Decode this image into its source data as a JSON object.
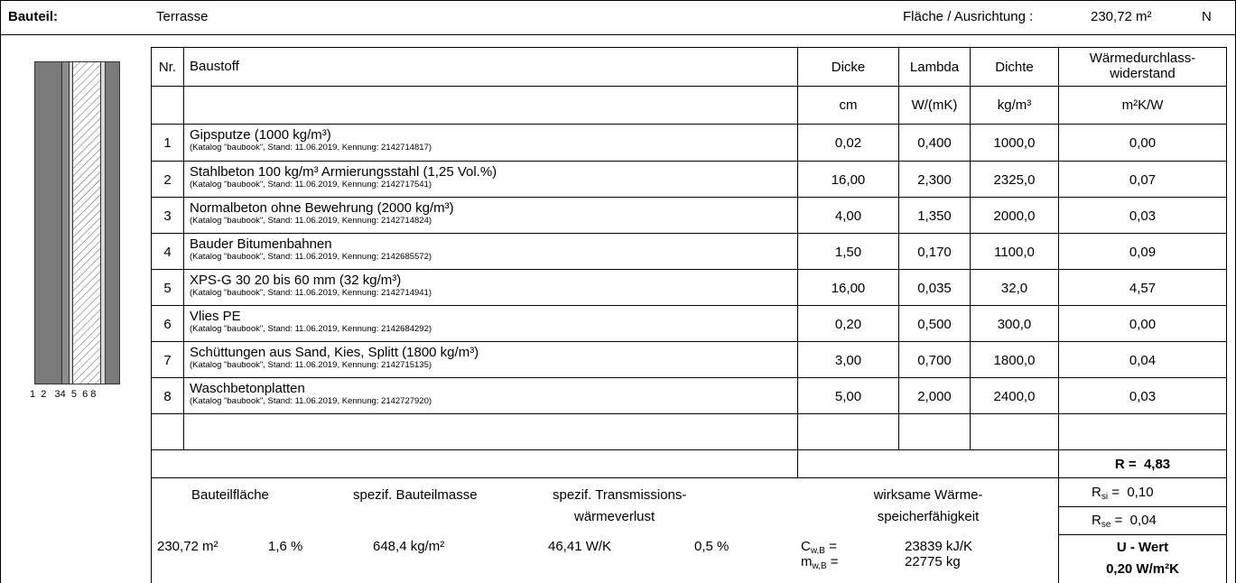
{
  "header": {
    "label": "Bauteil:",
    "name": "Terrasse",
    "area_label": "Fläche / Ausrichtung :",
    "area_value": "230,72 m²",
    "orientation": "N"
  },
  "columns": {
    "nr": "Nr.",
    "material": "Baustoff",
    "thickness": "Dicke",
    "lambda": "Lambda",
    "density": "Dichte",
    "resistance": "Wärmedurchlass-\nwiderstand",
    "resistance_line1": "Wärmedurchlass-",
    "resistance_line2": "widerstand"
  },
  "units": {
    "thickness": "cm",
    "lambda": "W/(mK)",
    "density": "kg/m³",
    "resistance": "m²K/W"
  },
  "layers": [
    {
      "nr": "1",
      "name": "Gipsputze (1000 kg/m³)",
      "catalog": "(Katalog \"baubook\", Stand: 11.06.2019, Kennung: 2142714817)",
      "thickness": "0,02",
      "lambda": "0,400",
      "density": "1000,0",
      "resistance": "0,00"
    },
    {
      "nr": "2",
      "name": "Stahlbeton 100 kg/m³ Armierungsstahl (1,25 Vol.%)",
      "catalog": "(Katalog \"baubook\", Stand: 11.06.2019, Kennung: 2142717541)",
      "thickness": "16,00",
      "lambda": "2,300",
      "density": "2325,0",
      "resistance": "0,07"
    },
    {
      "nr": "3",
      "name": "Normalbeton ohne Bewehrung (2000 kg/m³)",
      "catalog": "(Katalog \"baubook\", Stand: 11.06.2019, Kennung: 2142714824)",
      "thickness": "4,00",
      "lambda": "1,350",
      "density": "2000,0",
      "resistance": "0,03"
    },
    {
      "nr": "4",
      "name": "Bauder Bitumenbahnen",
      "catalog": "(Katalog \"baubook\", Stand: 11.06.2019, Kennung: 2142685572)",
      "thickness": "1,50",
      "lambda": "0,170",
      "density": "1100,0",
      "resistance": "0,09"
    },
    {
      "nr": "5",
      "name": "XPS-G 30 20 bis 60 mm (32 kg/m³)",
      "catalog": "(Katalog \"baubook\", Stand: 11.06.2019, Kennung: 2142714941)",
      "thickness": "16,00",
      "lambda": "0,035",
      "density": "32,0",
      "resistance": "4,57"
    },
    {
      "nr": "6",
      "name": "Vlies PE",
      "catalog": "(Katalog \"baubook\", Stand: 11.06.2019, Kennung: 2142684292)",
      "thickness": "0,20",
      "lambda": "0,500",
      "density": "300,0",
      "resistance": "0,00"
    },
    {
      "nr": "7",
      "name": "Schüttungen aus Sand, Kies, Splitt (1800 kg/m³)",
      "catalog": "(Katalog \"baubook\", Stand: 11.06.2019, Kennung: 2142715135)",
      "thickness": "3,00",
      "lambda": "0,700",
      "density": "1800,0",
      "resistance": "0,04"
    },
    {
      "nr": "8",
      "name": "Waschbetonplatten",
      "catalog": "(Katalog \"baubook\", Stand: 11.06.2019, Kennung: 2142727920)",
      "thickness": "5,00",
      "lambda": "2,000",
      "density": "2400,0",
      "resistance": "0,03"
    }
  ],
  "diagram": {
    "layer_labels": "1  2   34  5  6 8",
    "colors": {
      "dark": "#7a7a7a",
      "mid": "#8c8c8c",
      "light": "#d9d9d9"
    }
  },
  "totals": {
    "r_label": "R =",
    "r_value": "4,83",
    "rsi_label": "R",
    "rsi_sub": "si",
    "rsi_value": "=  0,10",
    "rse_label": "R",
    "rse_sub": "se",
    "rse_value": "=  0,04",
    "u_label": "U - Wert",
    "u_value": "0,20 W/m²K"
  },
  "summary": {
    "area_label": "Bauteilfläche",
    "mass_label": "spezif. Bauteilmasse",
    "trans_label_1": "spezif. Transmissions-",
    "trans_label_2": "wärmeverlust",
    "storage_label_1": "wirksame Wärme-",
    "storage_label_2": "speicherfähigkeit",
    "area_value": "230,72 m²",
    "area_pct": "1,6 %",
    "mass_value": "648,4 kg/m²",
    "trans_value": "46,41 W/K",
    "trans_pct": "0,5 %",
    "cwb_label": "C",
    "cwb_sub": "w,B",
    "cwb_eq": "=",
    "cwb_value": "23839 kJ/K",
    "mwb_label": "m",
    "mwb_sub": "w,B",
    "mwb_eq": "=",
    "mwb_value": "22775 kg"
  }
}
